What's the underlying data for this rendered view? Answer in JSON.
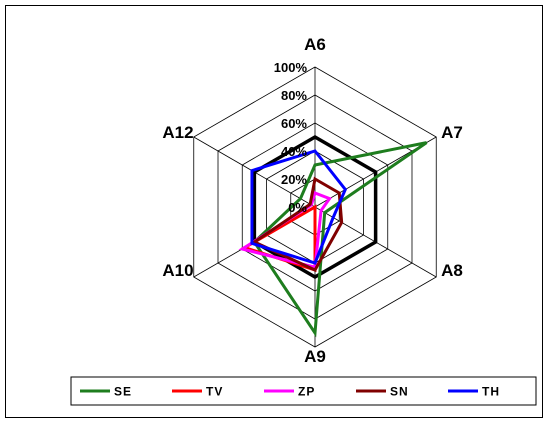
{
  "chart_data": {
    "type": "radar",
    "axes": [
      "A6",
      "A7",
      "A8",
      "A9",
      "A10",
      "A12"
    ],
    "tick_labels": [
      "0%",
      "20%",
      "40%",
      "60%",
      "80%",
      "100%"
    ],
    "range": [
      0,
      100
    ],
    "grid": true,
    "legend_placement": "bottom",
    "reference_series": {
      "values": [
        50,
        50,
        50,
        50,
        50,
        50
      ],
      "color": "#000000"
    },
    "series": [
      {
        "name": "SE",
        "color": "#1e7d1e",
        "values": [
          30,
          92,
          8,
          90,
          50,
          12
        ]
      },
      {
        "name": "TV",
        "color": "#ff0000",
        "values": [
          0,
          0,
          0,
          45,
          58,
          0
        ]
      },
      {
        "name": "ZP",
        "color": "#ff00ff",
        "values": [
          10,
          12,
          5,
          43,
          60,
          3
        ]
      },
      {
        "name": "SN",
        "color": "#800000",
        "values": [
          20,
          20,
          22,
          45,
          50,
          4
        ]
      },
      {
        "name": "TH",
        "color": "#0000ff",
        "values": [
          40,
          25,
          15,
          40,
          52,
          52
        ]
      }
    ]
  }
}
